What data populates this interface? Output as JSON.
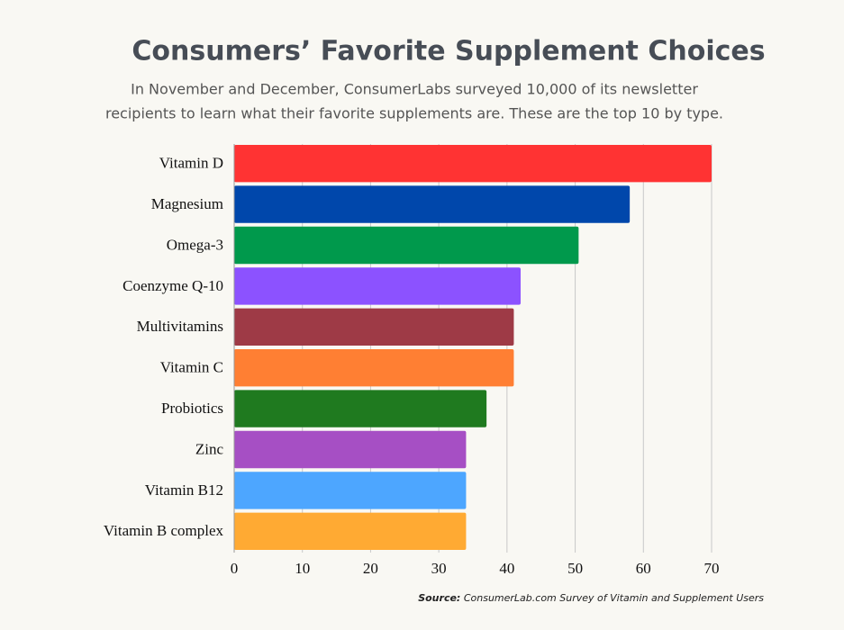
{
  "chart_data": {
    "type": "bar",
    "horizontal": true,
    "title": "Consumers’ Favorite Supplement Choices",
    "subtitle": [
      "In November and December, ConsumerLabs surveyed 10,000 of its newsletter",
      "recipients to learn what their favorite supplements are. These are the top 10 by type."
    ],
    "categories": [
      "Vitamin D",
      "Magnesium",
      "Omega-3",
      "Coenzyme Q-10",
      "Multivitamins",
      "Vitamin C",
      "Probiotics",
      "Zinc",
      "Vitamin B12",
      "Vitamin B complex"
    ],
    "values": [
      70,
      58,
      50.5,
      42,
      41,
      41,
      37,
      34,
      34,
      34
    ],
    "colors": [
      "#ff3333",
      "#0047ab",
      "#00994c",
      "#8c52ff",
      "#9e3a46",
      "#ff7f33",
      "#1f7a1f",
      "#a64fc4",
      "#4da6ff",
      "#ffaa33"
    ],
    "xlim": [
      0,
      70
    ],
    "xticks": [
      0,
      10,
      20,
      30,
      40,
      50,
      60,
      70
    ],
    "grid": true,
    "source": {
      "label": "Source:",
      "text": "ConsumerLab.com Survey of Vitamin and Supplement Users"
    }
  }
}
